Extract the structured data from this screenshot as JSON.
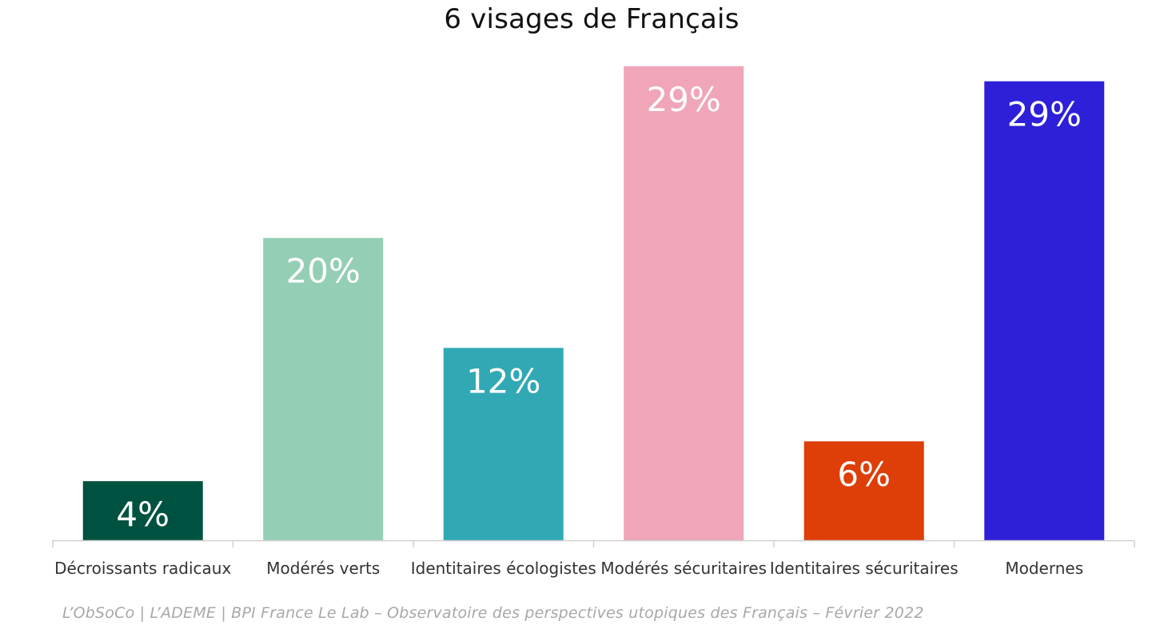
{
  "chart_data": {
    "type": "bar",
    "title": "6 visages de Français",
    "categories": [
      "Décroissants radicaux",
      "Modérés verts",
      "Identitaires écologistes",
      "Modérés sécuritaires",
      "Identitaires sécuritaires",
      "Modernes"
    ],
    "values": [
      4,
      20,
      12,
      29,
      6,
      29
    ],
    "value_labels": [
      "4%",
      "20%",
      "12%",
      "29%",
      "6%",
      "29%"
    ],
    "bar_heights_relative": [
      4.3,
      22,
      14,
      34.5,
      7.2,
      33.4
    ],
    "colors": [
      "#005240",
      "#94cfb5",
      "#31a9b5",
      "#f0a5b9",
      "#de3e08",
      "#2d20d8"
    ],
    "xlabel": "",
    "ylabel": "",
    "ylim": [
      0,
      36
    ],
    "grid": false,
    "legend": "none",
    "source": "L’ObSoCo | L’ADEME | BPI France Le Lab – Observatoire des perspectives utopiques des Français – Février 2022"
  }
}
